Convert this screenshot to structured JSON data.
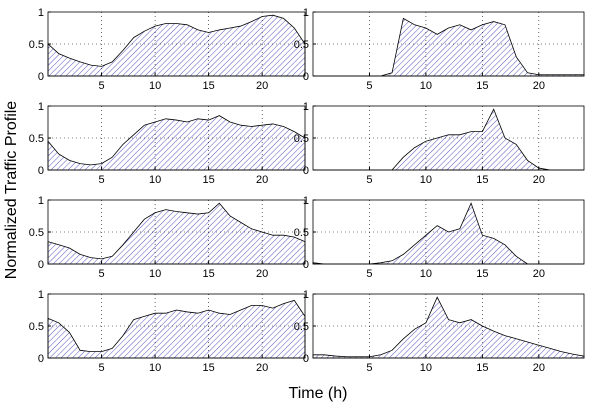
{
  "xlabel": "Time (h)",
  "ylabel": "Normalized Traffic Profile",
  "chart_data": [
    {
      "type": "area",
      "color": "#2b2bb0",
      "grid": true,
      "xlim": [
        0,
        24
      ],
      "ylim": [
        0,
        1
      ],
      "xticks": [
        5,
        10,
        15,
        20
      ],
      "yticks": [
        0,
        0.5,
        1
      ],
      "x": [
        0,
        1,
        2,
        3,
        4,
        5,
        6,
        7,
        8,
        9,
        10,
        11,
        12,
        13,
        14,
        15,
        16,
        17,
        18,
        19,
        20,
        21,
        22,
        23,
        24
      ],
      "values": [
        0.5,
        0.35,
        0.28,
        0.22,
        0.17,
        0.15,
        0.22,
        0.4,
        0.6,
        0.7,
        0.78,
        0.82,
        0.82,
        0.8,
        0.72,
        0.68,
        0.72,
        0.75,
        0.78,
        0.85,
        0.93,
        0.95,
        0.9,
        0.75,
        0.5
      ]
    },
    {
      "type": "area",
      "color": "#2b2bb0",
      "grid": true,
      "xlim": [
        0,
        24
      ],
      "ylim": [
        0,
        1
      ],
      "xticks": [
        5,
        10,
        15,
        20
      ],
      "yticks": [
        0,
        0.5,
        1
      ],
      "x": [
        0,
        1,
        2,
        3,
        4,
        5,
        6,
        7,
        8,
        9,
        10,
        11,
        12,
        13,
        14,
        15,
        16,
        17,
        18,
        19,
        20,
        21,
        22,
        23,
        24
      ],
      "values": [
        0,
        0,
        0,
        0,
        0,
        0,
        0,
        0.05,
        0.9,
        0.8,
        0.75,
        0.65,
        0.75,
        0.8,
        0.72,
        0.8,
        0.85,
        0.8,
        0.3,
        0.05,
        0.02,
        0.02,
        0.02,
        0.02,
        0.02
      ]
    },
    {
      "type": "area",
      "color": "#2b2bb0",
      "grid": true,
      "xlim": [
        0,
        24
      ],
      "ylim": [
        0,
        1
      ],
      "xticks": [
        5,
        10,
        15,
        20
      ],
      "yticks": [
        0,
        0.5,
        1
      ],
      "x": [
        0,
        1,
        2,
        3,
        4,
        5,
        6,
        7,
        8,
        9,
        10,
        11,
        12,
        13,
        14,
        15,
        16,
        17,
        18,
        19,
        20,
        21,
        22,
        23,
        24
      ],
      "values": [
        0.45,
        0.25,
        0.15,
        0.1,
        0.08,
        0.1,
        0.2,
        0.4,
        0.55,
        0.7,
        0.75,
        0.8,
        0.78,
        0.75,
        0.8,
        0.78,
        0.85,
        0.75,
        0.7,
        0.68,
        0.7,
        0.72,
        0.68,
        0.6,
        0.5
      ]
    },
    {
      "type": "area",
      "color": "#2b2bb0",
      "grid": true,
      "xlim": [
        0,
        24
      ],
      "ylim": [
        0,
        1
      ],
      "xticks": [
        5,
        10,
        15,
        20
      ],
      "yticks": [
        0,
        0.5,
        1
      ],
      "x": [
        0,
        1,
        2,
        3,
        4,
        5,
        6,
        7,
        8,
        9,
        10,
        11,
        12,
        13,
        14,
        15,
        16,
        17,
        18,
        19,
        20,
        21,
        22,
        23,
        24
      ],
      "values": [
        0,
        0,
        0,
        0,
        0,
        0,
        0,
        0,
        0.2,
        0.35,
        0.45,
        0.5,
        0.55,
        0.55,
        0.6,
        0.6,
        0.95,
        0.5,
        0.4,
        0.15,
        0.03,
        0,
        0,
        0,
        0
      ]
    },
    {
      "type": "area",
      "color": "#2b2bb0",
      "grid": true,
      "xlim": [
        0,
        24
      ],
      "ylim": [
        0,
        1
      ],
      "xticks": [
        5,
        10,
        15,
        20
      ],
      "yticks": [
        0,
        0.5,
        1
      ],
      "x": [
        0,
        1,
        2,
        3,
        4,
        5,
        6,
        7,
        8,
        9,
        10,
        11,
        12,
        13,
        14,
        15,
        16,
        17,
        18,
        19,
        20,
        21,
        22,
        23,
        24
      ],
      "values": [
        0.35,
        0.3,
        0.25,
        0.15,
        0.1,
        0.08,
        0.12,
        0.3,
        0.5,
        0.7,
        0.8,
        0.85,
        0.82,
        0.8,
        0.78,
        0.8,
        0.95,
        0.75,
        0.65,
        0.55,
        0.5,
        0.45,
        0.45,
        0.42,
        0.35
      ]
    },
    {
      "type": "area",
      "color": "#2b2bb0",
      "grid": true,
      "xlim": [
        0,
        24
      ],
      "ylim": [
        0,
        1
      ],
      "xticks": [
        5,
        10,
        15,
        20
      ],
      "yticks": [
        0,
        0.5,
        1
      ],
      "x": [
        0,
        1,
        2,
        3,
        4,
        5,
        6,
        7,
        8,
        9,
        10,
        11,
        12,
        13,
        14,
        15,
        16,
        17,
        18,
        19,
        20,
        21,
        22,
        23,
        24
      ],
      "values": [
        0.02,
        0,
        0,
        0,
        0,
        0,
        0.02,
        0.05,
        0.15,
        0.3,
        0.45,
        0.6,
        0.5,
        0.55,
        0.95,
        0.45,
        0.4,
        0.3,
        0.12,
        0,
        0,
        0,
        0,
        0,
        0
      ]
    },
    {
      "type": "area",
      "color": "#2b2bb0",
      "grid": true,
      "xlim": [
        0,
        24
      ],
      "ylim": [
        0,
        1
      ],
      "xticks": [
        5,
        10,
        15,
        20
      ],
      "yticks": [
        0,
        0.5,
        1
      ],
      "x": [
        0,
        1,
        2,
        3,
        4,
        5,
        6,
        7,
        8,
        9,
        10,
        11,
        12,
        13,
        14,
        15,
        16,
        17,
        18,
        19,
        20,
        21,
        22,
        23,
        24
      ],
      "values": [
        0.62,
        0.55,
        0.4,
        0.12,
        0.1,
        0.1,
        0.15,
        0.35,
        0.6,
        0.65,
        0.7,
        0.7,
        0.75,
        0.72,
        0.7,
        0.75,
        0.7,
        0.68,
        0.75,
        0.82,
        0.82,
        0.78,
        0.85,
        0.9,
        0.65
      ]
    },
    {
      "type": "area",
      "color": "#2b2bb0",
      "grid": true,
      "xlim": [
        0,
        24
      ],
      "ylim": [
        0,
        1
      ],
      "xticks": [
        5,
        10,
        15,
        20
      ],
      "yticks": [
        0,
        0.5,
        1
      ],
      "x": [
        0,
        1,
        2,
        3,
        4,
        5,
        6,
        7,
        8,
        9,
        10,
        11,
        12,
        13,
        14,
        15,
        16,
        17,
        18,
        19,
        20,
        21,
        22,
        23,
        24
      ],
      "values": [
        0.05,
        0.05,
        0.03,
        0.02,
        0.02,
        0.02,
        0.05,
        0.12,
        0.3,
        0.45,
        0.55,
        0.95,
        0.6,
        0.55,
        0.6,
        0.5,
        0.42,
        0.35,
        0.3,
        0.25,
        0.2,
        0.15,
        0.1,
        0.06,
        0.03
      ]
    }
  ]
}
